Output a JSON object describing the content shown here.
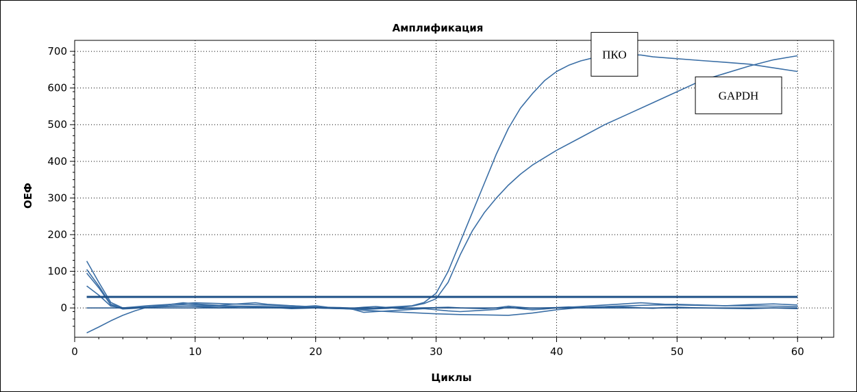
{
  "chart_data": {
    "type": "line",
    "title": "Амплификация",
    "xlabel": "Циклы",
    "ylabel": "ОЕФ",
    "xlim": [
      0,
      63
    ],
    "ylim": [
      -80,
      730
    ],
    "xticks": [
      0,
      10,
      20,
      30,
      40,
      50,
      60
    ],
    "yticks": [
      0,
      100,
      200,
      300,
      400,
      500,
      600,
      700
    ],
    "grid": true,
    "line_color": "#3a6ea5",
    "threshold": {
      "value": 30,
      "color": "#1c4f86"
    },
    "annotations": [
      {
        "text": "ПКО",
        "x": 44.8,
        "y": 692
      },
      {
        "text": "GAPDH",
        "x": 55.1,
        "y": 580
      }
    ],
    "series": [
      {
        "name": "ПКО",
        "x": [
          1,
          2,
          3,
          4,
          5,
          6,
          8,
          10,
          12,
          14,
          16,
          18,
          20,
          22,
          24,
          26,
          28,
          29,
          30,
          31,
          32,
          33,
          34,
          35,
          36,
          37,
          38,
          39,
          40,
          41,
          42,
          43,
          44,
          45,
          46,
          47,
          48,
          50,
          52,
          54,
          56,
          58,
          60
        ],
        "y": [
          105,
          60,
          10,
          0,
          3,
          6,
          10,
          8,
          6,
          5,
          4,
          3,
          2,
          1,
          -2,
          2,
          6,
          15,
          40,
          100,
          180,
          260,
          340,
          420,
          490,
          545,
          585,
          620,
          645,
          662,
          674,
          682,
          688,
          690,
          691,
          690,
          685,
          680,
          675,
          670,
          665,
          655,
          645
        ]
      },
      {
        "name": "GAPDH",
        "x": [
          1,
          2,
          3,
          4,
          6,
          8,
          10,
          12,
          14,
          16,
          18,
          20,
          22,
          24,
          26,
          28,
          29,
          30,
          31,
          32,
          33,
          34,
          35,
          36,
          37,
          38,
          40,
          42,
          44,
          46,
          48,
          50,
          52,
          54,
          56,
          58,
          60
        ],
        "y": [
          128,
          70,
          15,
          0,
          2,
          4,
          5,
          4,
          3,
          2,
          1,
          0,
          -2,
          -4,
          -1,
          5,
          12,
          25,
          70,
          145,
          210,
          260,
          300,
          335,
          365,
          390,
          430,
          465,
          500,
          530,
          560,
          590,
          620,
          640,
          660,
          677,
          688
        ]
      },
      {
        "name": "",
        "x": [
          1,
          2,
          3,
          4,
          5,
          6,
          8,
          10,
          12,
          14,
          16,
          18,
          20,
          22,
          24,
          26,
          28,
          30,
          32,
          34,
          36,
          38,
          40,
          42,
          44,
          46,
          48,
          50,
          52,
          54,
          56,
          58,
          60
        ],
        "y": [
          -68,
          -52,
          -35,
          -20,
          -8,
          2,
          10,
          14,
          12,
          10,
          8,
          6,
          3,
          -1,
          -6,
          -10,
          -13,
          -16,
          -18,
          -19,
          -20,
          -14,
          -5,
          1,
          4,
          6,
          8,
          8,
          7,
          6,
          6,
          5,
          4
        ]
      },
      {
        "name": "",
        "x": [
          1,
          2,
          3,
          4,
          5,
          6,
          7,
          8,
          9,
          10,
          11,
          12,
          13,
          14,
          15,
          16,
          17,
          18,
          19,
          20,
          21,
          22,
          23,
          24,
          25,
          26,
          27,
          28,
          29,
          30,
          31,
          32,
          33,
          34,
          35,
          36,
          37,
          38,
          39,
          40,
          41,
          42,
          43,
          44,
          45,
          46,
          47,
          48,
          49,
          50,
          52,
          54,
          56,
          58,
          60
        ],
        "y": [
          95,
          55,
          8,
          -3,
          -1,
          2,
          6,
          10,
          14,
          11,
          9,
          7,
          10,
          12,
          14,
          10,
          8,
          6,
          4,
          6,
          2,
          0,
          -3,
          -12,
          -10,
          -8,
          -6,
          -4,
          -2,
          -5,
          -8,
          -10,
          -8,
          -6,
          -4,
          2,
          -2,
          -5,
          -3,
          0,
          2,
          4,
          6,
          8,
          10,
          12,
          14,
          12,
          10,
          10,
          8,
          6,
          9,
          11,
          8
        ]
      },
      {
        "name": "",
        "x": [
          1,
          2,
          3,
          4,
          5,
          6,
          7,
          8,
          9,
          10,
          11,
          12,
          13,
          14,
          15,
          16,
          17,
          18,
          19,
          20,
          21,
          22,
          23,
          24,
          25,
          26,
          27,
          28,
          29,
          30,
          31,
          32,
          33,
          34,
          35,
          36,
          37,
          38,
          39,
          40,
          41,
          42,
          43,
          44,
          45,
          46,
          47,
          48,
          49,
          50,
          52,
          54,
          56,
          58,
          60
        ],
        "y": [
          60,
          35,
          5,
          0,
          2,
          3,
          4,
          6,
          5,
          4,
          2,
          0,
          2,
          4,
          3,
          1,
          0,
          -2,
          -1,
          0,
          -1,
          -2,
          -1,
          2,
          4,
          1,
          -2,
          -1,
          0,
          1,
          2,
          0,
          -1,
          -2,
          0,
          5,
          2,
          -1,
          0,
          1,
          3,
          2,
          0,
          1,
          3,
          2,
          0,
          -1,
          1,
          2,
          0,
          -1,
          -2,
          0,
          -2
        ]
      }
    ]
  }
}
